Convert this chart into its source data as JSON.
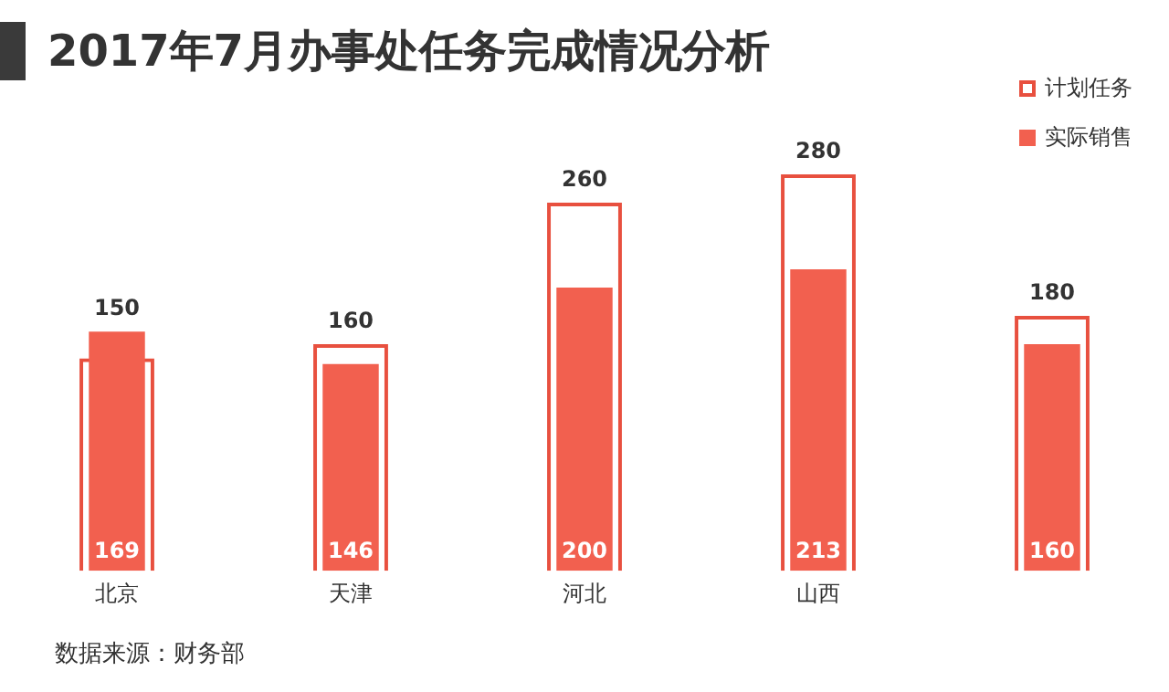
{
  "chart_data": {
    "type": "bar",
    "title": "2017年7月办事处任务完成情况分析",
    "categories": [
      "北京",
      "天津",
      "河北",
      "山西",
      null
    ],
    "series": [
      {
        "name": "计划任务",
        "color": "#e8503f",
        "values": [
          150,
          160,
          260,
          280,
          180
        ]
      },
      {
        "name": "实际销售",
        "color": "#f2604f",
        "values": [
          169,
          146,
          200,
          213,
          160
        ]
      }
    ],
    "data_labels": true,
    "grid": false,
    "legend": "top right",
    "annotations": [
      "数据来源：财务部"
    ]
  }
}
